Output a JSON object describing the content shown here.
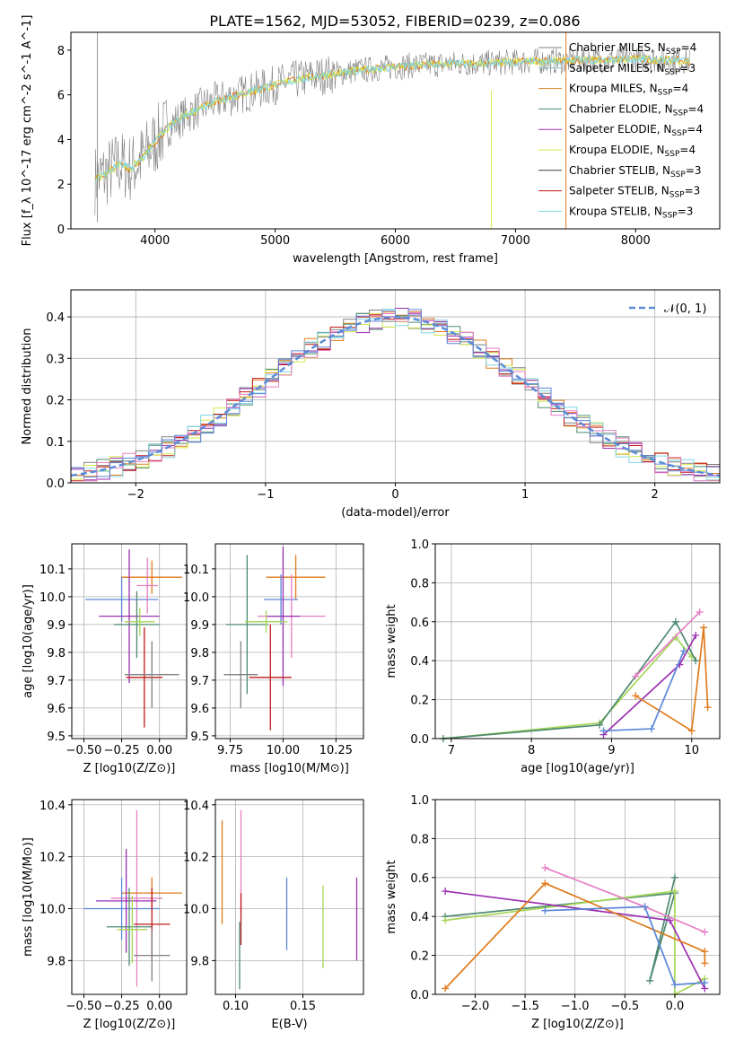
{
  "figure": {
    "title": "PLATE=1562, MJD=53052, FIBERID=0239, z=0.086"
  },
  "colors": {
    "Chabrier MILES": "#808080",
    "Salpeter MILES": "#8fc0c0",
    "Kroupa MILES": "#e07b1c",
    "Chabrier ELODIE": "#4e8a70",
    "Salpeter ELODIE": "#9b30b0",
    "Kroupa ELODIE": "#d6e94a",
    "Chabrier STELIB": "#3c3c3c",
    "Salpeter STELIB": "#c01818",
    "Kroupa STELIB": "#7fd6e6",
    "pink": "#e67dc4",
    "blue": "#5b86d8",
    "green": "#a5d657"
  },
  "chart_data": [
    {
      "id": "spectrum",
      "type": "line",
      "title": "PLATE=1562, MJD=53052, FIBERID=0239, z=0.086",
      "xlabel": "wavelength [Angstrom, rest frame]",
      "ylabel": "Flux [f_λ 10^-17 erg cm^-2 s^-1 A^-1]",
      "xlim": [
        3300,
        8700
      ],
      "ylim": [
        0,
        8.8
      ],
      "xticks": [
        4000,
        5000,
        6000,
        7000,
        8000
      ],
      "yticks": [
        0,
        2,
        4,
        6,
        8
      ],
      "grid": false,
      "legend_position": "right",
      "legend": [
        "Chabrier MILES, N_SSP=4",
        "Salpeter MILES, N_SSP=3",
        "Kroupa MILES, N_SSP=4",
        "Chabrier ELODIE, N_SSP=4",
        "Salpeter ELODIE, N_SSP=4",
        "Kroupa ELODIE, N_SSP=4",
        "Chabrier STELIB, N_SSP=3",
        "Salpeter STELIB, N_SSP=3",
        "Kroupa STELIB, N_SSP=3"
      ],
      "series": [
        {
          "name": "data",
          "x": [
            3500,
            3600,
            3700,
            3800,
            3900,
            4000,
            4100,
            4200,
            4300,
            4400,
            4500,
            4700,
            4900,
            5100,
            5300,
            5500,
            5700,
            5900,
            6100,
            6300,
            6500,
            6700,
            6900,
            7100,
            7300,
            7500,
            7700,
            7900,
            8100,
            8300,
            8450
          ],
          "y": [
            2.2,
            2.5,
            2.9,
            2.7,
            3.2,
            3.9,
            4.5,
            4.9,
            5.2,
            5.5,
            5.7,
            6.0,
            6.3,
            6.6,
            6.8,
            6.95,
            7.1,
            7.2,
            7.3,
            7.35,
            7.4,
            7.4,
            7.45,
            7.5,
            7.5,
            7.55,
            7.55,
            7.6,
            7.6,
            7.55,
            7.5
          ]
        },
        {
          "name": "model",
          "x": [
            3500,
            3600,
            3700,
            3800,
            3900,
            4000,
            4100,
            4200,
            4300,
            4400,
            4500,
            4700,
            4900,
            5100,
            5300,
            5500,
            5700,
            5900,
            6100,
            6300,
            6500,
            6700,
            6900,
            7100,
            7300,
            7500,
            7700,
            7900,
            8100,
            8300,
            8450
          ],
          "y": [
            2.1,
            2.4,
            2.8,
            2.8,
            3.3,
            3.9,
            4.4,
            4.9,
            5.2,
            5.5,
            5.7,
            6.0,
            6.3,
            6.6,
            6.8,
            6.95,
            7.1,
            7.2,
            7.3,
            7.35,
            7.4,
            7.4,
            7.45,
            7.5,
            7.5,
            7.55,
            7.55,
            7.6,
            7.6,
            7.55,
            7.5
          ]
        }
      ]
    },
    {
      "id": "residuals",
      "type": "line",
      "xlabel": "(data-model)/error",
      "ylabel": "Normed distribution",
      "xlim": [
        -2.5,
        2.5
      ],
      "ylim": [
        0,
        0.465
      ],
      "xticks": [
        -2,
        -1,
        0,
        1,
        2
      ],
      "yticks": [
        0.0,
        0.1,
        0.2,
        0.3,
        0.4
      ],
      "grid": true,
      "legend_position": "top-right",
      "legend": [
        "𝒩(0, 1)"
      ],
      "x": [
        -2.5,
        -2.3,
        -2.1,
        -1.9,
        -1.7,
        -1.5,
        -1.3,
        -1.1,
        -0.9,
        -0.7,
        -0.5,
        -0.3,
        -0.1,
        0.1,
        0.3,
        0.5,
        0.7,
        0.9,
        1.1,
        1.3,
        1.5,
        1.7,
        1.9,
        2.1,
        2.3,
        2.5
      ],
      "hist": [
        0.022,
        0.03,
        0.045,
        0.058,
        0.07,
        0.12,
        0.17,
        0.25,
        0.29,
        0.32,
        0.35,
        0.38,
        0.39,
        0.39,
        0.38,
        0.35,
        0.3,
        0.25,
        0.18,
        0.13,
        0.1,
        0.08,
        0.06,
        0.045,
        0.035,
        0.03
      ]
    },
    {
      "id": "age_vs_Z",
      "type": "scatter",
      "xlabel": "Z [log10(Z/Z⊙)]",
      "ylabel": "age [log10(age/yr)]",
      "xlim": [
        -0.58,
        0.18
      ],
      "ylim": [
        9.49,
        10.19
      ],
      "xticks": [
        -0.5,
        -0.25,
        0.0
      ],
      "yticks": [
        9.5,
        9.6,
        9.7,
        9.8,
        9.9,
        10.0,
        10.1
      ],
      "grid": true,
      "points": [
        {
          "color": "Kroupa MILES",
          "x": -0.05,
          "xerr": 0.2,
          "y": 10.07,
          "yerr": 0.06
        },
        {
          "color": "blue",
          "x": -0.25,
          "xerr": 0.24,
          "y": 9.99,
          "yerr": 0.08
        },
        {
          "color": "pink",
          "x": -0.08,
          "xerr": 0.07,
          "y": 10.04,
          "yerr": 0.1
        },
        {
          "color": "Salpeter ELODIE",
          "x": -0.2,
          "xerr": 0.2,
          "y": 9.93,
          "yerr": 0.24
        },
        {
          "color": "Chabrier ELODIE",
          "x": -0.15,
          "xerr": 0.15,
          "y": 9.9,
          "yerr": 0.12
        },
        {
          "color": "green",
          "x": -0.13,
          "xerr": 0.1,
          "y": 9.91,
          "yerr": 0.05
        },
        {
          "color": "Salpeter STELIB",
          "x": -0.1,
          "xerr": 0.12,
          "y": 9.71,
          "yerr": 0.18
        },
        {
          "color": "Chabrier MILES",
          "x": -0.05,
          "xerr": 0.18,
          "y": 9.72,
          "yerr": 0.12
        }
      ]
    },
    {
      "id": "age_vs_mass",
      "type": "scatter",
      "xlabel": "mass [log10(M/M⊙)]",
      "ylabel": "",
      "xlim": [
        9.68,
        10.38
      ],
      "ylim": [
        9.49,
        10.19
      ],
      "xticks": [
        9.75,
        10.0,
        10.25
      ],
      "yticks": [
        9.5,
        9.6,
        9.7,
        9.8,
        9.9,
        10.0,
        10.1
      ],
      "grid": true,
      "points": [
        {
          "color": "Kroupa MILES",
          "x": 10.06,
          "xerr": 0.14,
          "y": 10.07,
          "yerr": 0.08
        },
        {
          "color": "blue",
          "x": 9.99,
          "xerr": 0.08,
          "y": 9.99,
          "yerr": 0.09
        },
        {
          "color": "pink",
          "x": 10.04,
          "xerr": 0.16,
          "y": 9.93,
          "yerr": 0.15
        },
        {
          "color": "Salpeter ELODIE",
          "x": 10.0,
          "xerr": 0.08,
          "y": 9.93,
          "yerr": 0.25
        },
        {
          "color": "Chabrier ELODIE",
          "x": 9.83,
          "xerr": 0.1,
          "y": 9.9,
          "yerr": 0.25
        },
        {
          "color": "green",
          "x": 9.92,
          "xerr": 0.1,
          "y": 9.91,
          "yerr": 0.04
        },
        {
          "color": "Salpeter STELIB",
          "x": 9.94,
          "xerr": 0.1,
          "y": 9.71,
          "yerr": 0.19
        },
        {
          "color": "Chabrier MILES",
          "x": 9.8,
          "xerr": 0.08,
          "y": 9.72,
          "yerr": 0.12
        }
      ]
    },
    {
      "id": "weight_vs_age",
      "type": "line",
      "xlabel": "age [log10(age/yr)]",
      "ylabel": "mass weight",
      "xlim": [
        6.8,
        10.35
      ],
      "ylim": [
        0,
        1.0
      ],
      "xticks": [
        7,
        8,
        9,
        10
      ],
      "yticks": [
        0.0,
        0.2,
        0.4,
        0.6,
        0.8,
        1.0
      ],
      "grid": true,
      "series": [
        {
          "color": "green",
          "x": [
            6.9,
            8.85,
            9.8,
            10.0
          ],
          "y": [
            0.0,
            0.08,
            0.52,
            0.42
          ]
        },
        {
          "color": "Chabrier ELODIE",
          "x": [
            6.9,
            8.85,
            9.8,
            10.05
          ],
          "y": [
            0.0,
            0.07,
            0.6,
            0.4
          ]
        },
        {
          "color": "Salpeter ELODIE",
          "x": [
            8.9,
            9.85,
            10.05
          ],
          "y": [
            0.02,
            0.38,
            0.53
          ]
        },
        {
          "color": "pink",
          "x": [
            9.3,
            10.1
          ],
          "y": [
            0.32,
            0.65
          ]
        },
        {
          "color": "Kroupa MILES",
          "x": [
            9.3,
            10.0,
            10.15,
            10.2
          ],
          "y": [
            0.22,
            0.04,
            0.57,
            0.16
          ]
        },
        {
          "color": "blue",
          "x": [
            8.9,
            9.5,
            9.9
          ],
          "y": [
            0.04,
            0.05,
            0.45
          ]
        }
      ]
    },
    {
      "id": "mass_vs_Z",
      "type": "scatter",
      "xlabel": "Z [log10(Z/Z⊙)]",
      "ylabel": "mass [log10(M/M⊙)]",
      "xlim": [
        -0.58,
        0.18
      ],
      "ylim": [
        9.67,
        10.42
      ],
      "xticks": [
        -0.5,
        -0.25,
        0.0
      ],
      "yticks": [
        9.8,
        10.0,
        10.2,
        10.4
      ],
      "grid": true,
      "points": [
        {
          "color": "pink",
          "x": -0.15,
          "xerr": 0.17,
          "y": 10.04,
          "yerr": 0.34
        },
        {
          "color": "Kroupa MILES",
          "x": -0.05,
          "xerr": 0.2,
          "y": 10.06,
          "yerr": 0.06
        },
        {
          "color": "blue",
          "x": -0.25,
          "xerr": 0.25,
          "y": 10.0,
          "yerr": 0.12
        },
        {
          "color": "Salpeter ELODIE",
          "x": -0.22,
          "xerr": 0.2,
          "y": 10.03,
          "yerr": 0.2
        },
        {
          "color": "Chabrier ELODIE",
          "x": -0.2,
          "xerr": 0.15,
          "y": 9.93,
          "yerr": 0.15
        },
        {
          "color": "green",
          "x": -0.18,
          "xerr": 0.1,
          "y": 9.92,
          "yerr": 0.13
        },
        {
          "color": "Salpeter STELIB",
          "x": -0.05,
          "xerr": 0.12,
          "y": 9.94,
          "yerr": 0.14
        },
        {
          "color": "Chabrier MILES",
          "x": -0.05,
          "xerr": 0.12,
          "y": 9.82,
          "yerr": 0.1
        }
      ]
    },
    {
      "id": "mass_vs_EBV",
      "type": "scatter",
      "xlabel": "E(B-V)",
      "ylabel": "",
      "xlim": [
        0.085,
        0.195
      ],
      "ylim": [
        9.67,
        10.42
      ],
      "xticks": [
        0.1,
        0.15
      ],
      "yticks": [
        9.8,
        10.0,
        10.2,
        10.4
      ],
      "grid": true,
      "points": [
        {
          "color": "Kroupa MILES",
          "x": 0.09,
          "y": 10.14,
          "yerr": 0.2
        },
        {
          "color": "pink",
          "x": 0.104,
          "y": 10.18,
          "yerr": 0.2
        },
        {
          "color": "Salpeter STELIB",
          "x": 0.104,
          "y": 9.96,
          "yerr": 0.1
        },
        {
          "color": "Chabrier ELODIE",
          "x": 0.103,
          "y": 9.82,
          "yerr": 0.13
        },
        {
          "color": "blue",
          "x": 0.138,
          "y": 9.98,
          "yerr": 0.14
        },
        {
          "color": "green",
          "x": 0.165,
          "y": 9.93,
          "yerr": 0.16
        },
        {
          "color": "Salpeter ELODIE",
          "x": 0.19,
          "y": 9.96,
          "yerr": 0.16
        }
      ]
    },
    {
      "id": "weight_vs_Z",
      "type": "line",
      "xlabel": "Z [log10(Z/Z⊙)]",
      "ylabel": "mass weight",
      "xlim": [
        -2.4,
        0.45
      ],
      "ylim": [
        0,
        1.0
      ],
      "xticks": [
        -2.0,
        -1.5,
        -1.0,
        -0.5,
        0.0
      ],
      "yticks": [
        0.0,
        0.2,
        0.4,
        0.6,
        0.8,
        1.0
      ],
      "grid": true,
      "series": [
        {
          "color": "Chabrier ELODIE",
          "x": [
            -2.3,
            0.0,
            -0.25,
            0.0
          ],
          "y": [
            0.4,
            0.52,
            0.07,
            0.6
          ]
        },
        {
          "color": "green",
          "x": [
            -2.3,
            0.0,
            0.0,
            0.3
          ],
          "y": [
            0.38,
            0.53,
            0.0,
            0.08
          ]
        },
        {
          "color": "Salpeter ELODIE",
          "x": [
            -2.3,
            -0.05,
            0.3
          ],
          "y": [
            0.53,
            0.38,
            0.03
          ]
        },
        {
          "color": "Kroupa MILES",
          "x": [
            -2.3,
            -1.3,
            0.3,
            0.3
          ],
          "y": [
            0.03,
            0.57,
            0.22,
            0.16
          ]
        },
        {
          "color": "pink",
          "x": [
            -1.3,
            -0.3,
            0.3
          ],
          "y": [
            0.65,
            0.45,
            0.32
          ]
        },
        {
          "color": "blue",
          "x": [
            -1.3,
            -0.3,
            0.0,
            0.3
          ],
          "y": [
            0.43,
            0.45,
            0.05,
            0.06
          ]
        }
      ]
    }
  ]
}
